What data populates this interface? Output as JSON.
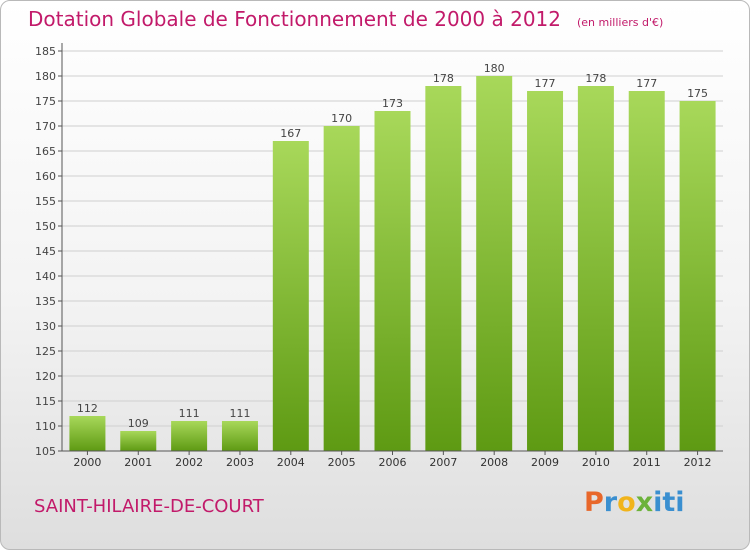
{
  "title": "Dotation Globale de Fonctionnement de 2000 à 2012",
  "unit_note": "(en milliers d'€)",
  "commune": "SAINT-HILAIRE-DE-COURT",
  "logo": {
    "letters": [
      "P",
      "r",
      "o",
      "x",
      "i",
      "t",
      "i"
    ],
    "colors": [
      "#e8672a",
      "#3a8fd0",
      "#f1b41b",
      "#6cb23a",
      "#3a8fd0",
      "#3a8fd0",
      "#3a8fd0"
    ]
  },
  "colors": {
    "bar_light": "#a8d85a",
    "bar_dark": "#5e9a13",
    "title": "#c21a6a",
    "grid": "#cfcfcf"
  },
  "chart_data": {
    "type": "bar",
    "categories": [
      "2000",
      "2001",
      "2002",
      "2003",
      "2004",
      "2005",
      "2006",
      "2007",
      "2008",
      "2009",
      "2010",
      "2011",
      "2012"
    ],
    "values": [
      112,
      109,
      111,
      111,
      167,
      170,
      173,
      178,
      180,
      177,
      178,
      177,
      175
    ],
    "yticks": [
      105,
      110,
      115,
      120,
      125,
      130,
      135,
      140,
      145,
      150,
      155,
      160,
      165,
      170,
      175,
      180,
      185
    ],
    "ylim": [
      105,
      185
    ],
    "grid": true
  }
}
